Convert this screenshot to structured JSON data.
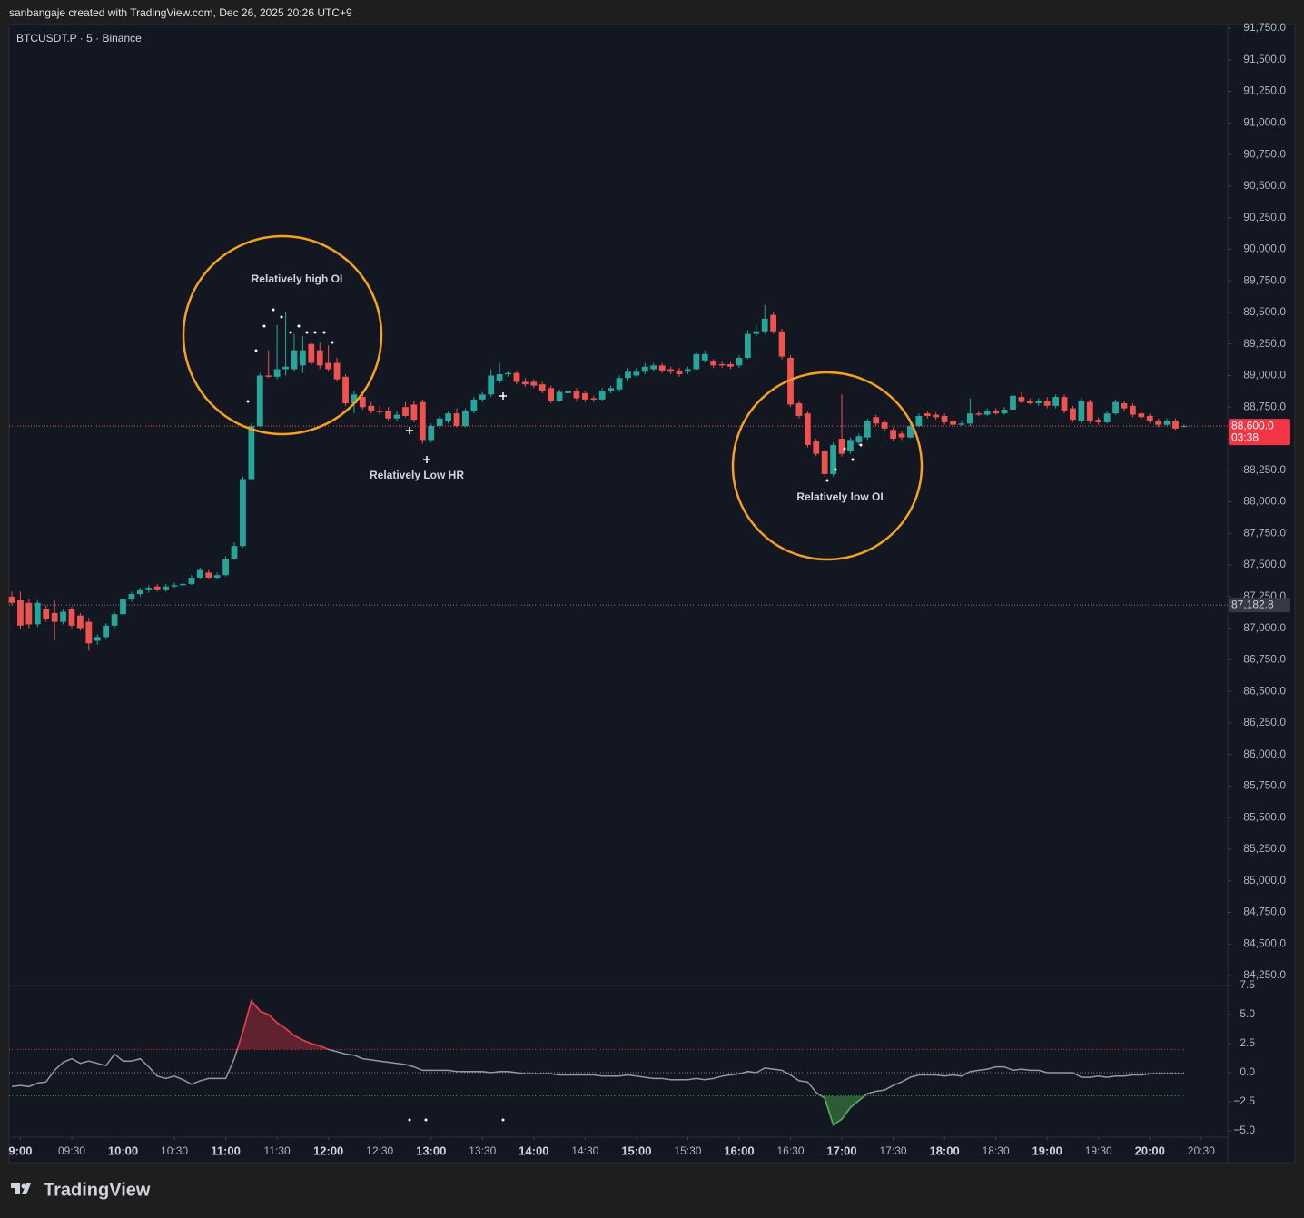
{
  "header": "sanbangaje created with TradingView.com, Dec 26, 2025 20:26 UTC+9",
  "footer": "TradingView",
  "chart_data": [
    {
      "type": "candlestick",
      "title": "BTCUSDT.P · 5 · Binance",
      "up_color": "#26a69a",
      "down_color": "#ef5350",
      "xlim": [
        -0.32,
        142.1
      ],
      "ylim": [
        84171,
        91779
      ],
      "yticks": [
        {
          "value": 84250,
          "label": "84,250.0"
        },
        {
          "value": 84500,
          "label": "84,500.0"
        },
        {
          "value": 84750,
          "label": "84,750.0"
        },
        {
          "value": 85000,
          "label": "85,000.0"
        },
        {
          "value": 85250,
          "label": "85,250.0"
        },
        {
          "value": 85500,
          "label": "85,500.0"
        },
        {
          "value": 85750,
          "label": "85,750.0"
        },
        {
          "value": 86000,
          "label": "86,000.0"
        },
        {
          "value": 86250,
          "label": "86,250.0"
        },
        {
          "value": 86500,
          "label": "86,500.0"
        },
        {
          "value": 86750,
          "label": "86,750.0"
        },
        {
          "value": 87000,
          "label": "87,000.0"
        },
        {
          "value": 87250,
          "label": "87,250.0"
        },
        {
          "value": 87500,
          "label": "87,500.0"
        },
        {
          "value": 87750,
          "label": "87,750.0"
        },
        {
          "value": 88000,
          "label": "88,000.0"
        },
        {
          "value": 88250,
          "label": "88,250.0"
        },
        {
          "value": 88500,
          "label": "88,500.0"
        },
        {
          "value": 88750,
          "label": "88,750.0"
        },
        {
          "value": 89000,
          "label": "89,000.0"
        },
        {
          "value": 89250,
          "label": "89,250.0"
        },
        {
          "value": 89500,
          "label": "89,500.0"
        },
        {
          "value": 89750,
          "label": "89,750.0"
        },
        {
          "value": 90000,
          "label": "90,000.0"
        },
        {
          "value": 90250,
          "label": "90,250.0"
        },
        {
          "value": 90500,
          "label": "90,500.0"
        },
        {
          "value": 90750,
          "label": "90,750.0"
        },
        {
          "value": 91000,
          "label": "91,000.0"
        },
        {
          "value": 91250,
          "label": "91,250.0"
        },
        {
          "value": 91500,
          "label": "91,500.0"
        },
        {
          "value": 91750,
          "label": "91,750.0"
        }
      ],
      "last_price": {
        "value": 88600,
        "label": "88,600.0"
      },
      "countdown": "03:38",
      "marked_price": {
        "value": 87182.8,
        "label": "87,182.8"
      },
      "annotations": [
        "Relatively high OI",
        "Relatively Low HR",
        "Relatively low OI"
      ],
      "candles": [
        [
          87250,
          87290,
          87180,
          87200
        ],
        [
          87220,
          87290,
          86990,
          87020
        ],
        [
          87200,
          87230,
          87000,
          87030
        ],
        [
          87030,
          87220,
          87010,
          87200
        ],
        [
          87150,
          87180,
          87050,
          87070
        ],
        [
          87120,
          87220,
          86900,
          87050
        ],
        [
          87050,
          87150,
          87030,
          87130
        ],
        [
          87150,
          87170,
          87000,
          87020
        ],
        [
          87100,
          87120,
          86980,
          87000
        ],
        [
          87050,
          87080,
          86820,
          86880
        ],
        [
          86900,
          86950,
          86870,
          86930
        ],
        [
          86930,
          87040,
          86910,
          87020
        ],
        [
          87020,
          87130,
          87000,
          87110
        ],
        [
          87110,
          87250,
          87100,
          87230
        ],
        [
          87230,
          87290,
          87210,
          87270
        ],
        [
          87270,
          87320,
          87250,
          87300
        ],
        [
          87300,
          87340,
          87280,
          87320
        ],
        [
          87330,
          87350,
          87290,
          87300
        ],
        [
          87300,
          87350,
          87290,
          87330
        ],
        [
          87330,
          87360,
          87320,
          87340
        ],
        [
          87340,
          87370,
          87320,
          87350
        ],
        [
          87350,
          87420,
          87340,
          87400
        ],
        [
          87400,
          87480,
          87390,
          87460
        ],
        [
          87440,
          87460,
          87390,
          87400
        ],
        [
          87400,
          87440,
          87390,
          87420
        ],
        [
          87420,
          87570,
          87410,
          87550
        ],
        [
          87550,
          87680,
          87540,
          87650
        ],
        [
          87650,
          88200,
          87640,
          88180
        ],
        [
          88180,
          88620,
          88170,
          88600
        ],
        [
          88600,
          89020,
          88590,
          89000
        ],
        [
          89000,
          89200,
          88980,
          88990
        ],
        [
          88990,
          89400,
          88970,
          89050
        ],
        [
          89050,
          89500,
          89000,
          89070
        ],
        [
          89050,
          89330,
          89030,
          89200
        ],
        [
          89080,
          89310,
          89020,
          89200
        ],
        [
          89250,
          89270,
          89080,
          89100
        ],
        [
          89200,
          89260,
          89050,
          89080
        ],
        [
          89100,
          89240,
          89030,
          89050
        ],
        [
          89100,
          89140,
          88950,
          88970
        ],
        [
          88990,
          89010,
          88760,
          88780
        ],
        [
          88780,
          88880,
          88700,
          88850
        ],
        [
          88830,
          88860,
          88730,
          88750
        ],
        [
          88760,
          88790,
          88700,
          88720
        ],
        [
          88720,
          88760,
          88690,
          88710
        ],
        [
          88720,
          88750,
          88640,
          88660
        ],
        [
          88660,
          88720,
          88640,
          88690
        ],
        [
          88750,
          88790,
          88670,
          88680
        ],
        [
          88770,
          88800,
          88630,
          88650
        ],
        [
          88790,
          88810,
          88460,
          88490
        ],
        [
          88490,
          88620,
          88470,
          88600
        ],
        [
          88600,
          88680,
          88580,
          88660
        ],
        [
          88640,
          88720,
          88620,
          88700
        ],
        [
          88700,
          88740,
          88590,
          88600
        ],
        [
          88600,
          88740,
          88590,
          88720
        ],
        [
          88720,
          88830,
          88700,
          88810
        ],
        [
          88810,
          88870,
          88790,
          88850
        ],
        [
          88850,
          89050,
          88830,
          89000
        ],
        [
          88960,
          89100,
          88940,
          89010
        ],
        [
          89010,
          89040,
          88990,
          89020
        ],
        [
          89020,
          89040,
          88930,
          88950
        ],
        [
          88950,
          88980,
          88910,
          88930
        ],
        [
          88950,
          88970,
          88900,
          88920
        ],
        [
          88930,
          88950,
          88860,
          88880
        ],
        [
          88900,
          88920,
          88780,
          88800
        ],
        [
          88800,
          88890,
          88790,
          88870
        ],
        [
          88860,
          88900,
          88840,
          88880
        ],
        [
          88880,
          88900,
          88800,
          88820
        ],
        [
          88860,
          88880,
          88790,
          88810
        ],
        [
          88820,
          88840,
          88790,
          88810
        ],
        [
          88810,
          88900,
          88800,
          88880
        ],
        [
          88880,
          88920,
          88860,
          88900
        ],
        [
          88890,
          89000,
          88870,
          88980
        ],
        [
          88980,
          89060,
          88960,
          89030
        ],
        [
          89000,
          89060,
          88990,
          89030
        ],
        [
          89030,
          89100,
          89010,
          89070
        ],
        [
          89050,
          89100,
          89030,
          89080
        ],
        [
          89080,
          89100,
          89020,
          89040
        ],
        [
          89050,
          89070,
          89010,
          89030
        ],
        [
          89040,
          89060,
          88990,
          89010
        ],
        [
          89030,
          89070,
          89010,
          89050
        ],
        [
          89050,
          89190,
          89040,
          89170
        ],
        [
          89120,
          89200,
          89100,
          89170
        ],
        [
          89110,
          89130,
          89060,
          89080
        ],
        [
          89090,
          89110,
          89060,
          89080
        ],
        [
          89090,
          89110,
          89050,
          89070
        ],
        [
          89080,
          89160,
          89060,
          89140
        ],
        [
          89140,
          89360,
          89130,
          89330
        ],
        [
          89330,
          89400,
          89310,
          89350
        ],
        [
          89350,
          89560,
          89330,
          89450
        ],
        [
          89480,
          89500,
          89330,
          89350
        ],
        [
          89350,
          89370,
          89130,
          89150
        ],
        [
          89140,
          89160,
          88750,
          88770
        ],
        [
          88780,
          88800,
          88660,
          88680
        ],
        [
          88700,
          88720,
          88430,
          88450
        ],
        [
          88480,
          88500,
          88360,
          88380
        ],
        [
          88400,
          88420,
          88200,
          88220
        ],
        [
          88220,
          88470,
          88200,
          88450
        ],
        [
          88500,
          88850,
          88360,
          88380
        ],
        [
          88400,
          88510,
          88380,
          88490
        ],
        [
          88470,
          88540,
          88450,
          88520
        ],
        [
          88510,
          88660,
          88490,
          88640
        ],
        [
          88670,
          88690,
          88600,
          88620
        ],
        [
          88630,
          88650,
          88560,
          88580
        ],
        [
          88570,
          88590,
          88480,
          88500
        ],
        [
          88540,
          88560,
          88490,
          88510
        ],
        [
          88510,
          88620,
          88500,
          88600
        ],
        [
          88600,
          88700,
          88590,
          88680
        ],
        [
          88700,
          88720,
          88660,
          88680
        ],
        [
          88690,
          88710,
          88650,
          88670
        ],
        [
          88680,
          88700,
          88610,
          88630
        ],
        [
          88640,
          88660,
          88600,
          88610
        ],
        [
          88610,
          88640,
          88600,
          88620
        ],
        [
          88620,
          88820,
          88600,
          88700
        ],
        [
          88700,
          88720,
          88680,
          88690
        ],
        [
          88690,
          88740,
          88680,
          88720
        ],
        [
          88720,
          88740,
          88690,
          88700
        ],
        [
          88700,
          88750,
          88690,
          88730
        ],
        [
          88730,
          88860,
          88720,
          88840
        ],
        [
          88830,
          88870,
          88780,
          88790
        ],
        [
          88800,
          88820,
          88770,
          88780
        ],
        [
          88780,
          88820,
          88760,
          88800
        ],
        [
          88800,
          88830,
          88740,
          88760
        ],
        [
          88760,
          88850,
          88740,
          88830
        ],
        [
          88830,
          88850,
          88700,
          88720
        ],
        [
          88740,
          88760,
          88630,
          88650
        ],
        [
          88640,
          88820,
          88620,
          88800
        ],
        [
          88790,
          88810,
          88620,
          88640
        ],
        [
          88650,
          88670,
          88610,
          88630
        ],
        [
          88630,
          88720,
          88620,
          88700
        ],
        [
          88700,
          88810,
          88690,
          88790
        ],
        [
          88780,
          88800,
          88720,
          88740
        ],
        [
          88760,
          88780,
          88670,
          88690
        ],
        [
          88700,
          88720,
          88650,
          88670
        ],
        [
          88680,
          88700,
          88620,
          88640
        ],
        [
          88640,
          88660,
          88590,
          88610
        ],
        [
          88610,
          88660,
          88600,
          88640
        ],
        [
          88640,
          88660,
          88570,
          88580
        ],
        [
          88600,
          88610,
          88590,
          88600
        ]
      ]
    },
    {
      "type": "line",
      "color": "#9598a1",
      "above_color": "#f23645",
      "below_color": "#4caf50",
      "levels": [
        2,
        0,
        -2
      ],
      "xlim": [
        -0.32,
        142.1
      ],
      "ylim": [
        -5.55,
        7.5
      ],
      "yticks": [
        7.5,
        {
          "value": 5,
          "label": "5.0"
        },
        2.5,
        {
          "value": 0,
          "label": "0.0"
        },
        {
          "value": -2.5,
          "label": "−2.5"
        },
        {
          "value": -5,
          "label": "−5.0"
        }
      ],
      "xticks": [
        {
          "value": 1,
          "label": "9:00"
        },
        {
          "value": 7,
          "label": "09:30"
        },
        {
          "value": 13,
          "label": "10:00"
        },
        {
          "value": 19,
          "label": "10:30"
        },
        {
          "value": 25,
          "label": "11:00"
        },
        {
          "value": 31,
          "label": "11:30"
        },
        {
          "value": 37,
          "label": "12:00"
        },
        {
          "value": 43,
          "label": "12:30"
        },
        {
          "value": 49,
          "label": "13:00"
        },
        {
          "value": 55,
          "label": "13:30"
        },
        {
          "value": 61,
          "label": "14:00"
        },
        {
          "value": 67,
          "label": "14:30"
        },
        {
          "value": 73,
          "label": "15:00"
        },
        {
          "value": 79,
          "label": "15:30"
        },
        {
          "value": 85,
          "label": "16:00"
        },
        {
          "value": 91,
          "label": "16:30"
        },
        {
          "value": 97,
          "label": "17:00"
        },
        {
          "value": 103,
          "label": "17:30"
        },
        {
          "value": 109,
          "label": "18:00"
        },
        {
          "value": 115,
          "label": "18:30"
        },
        {
          "value": 121,
          "label": "19:00"
        },
        {
          "value": 127,
          "label": "19:30"
        },
        {
          "value": 133,
          "label": "20:00"
        },
        {
          "value": 139,
          "label": "20:30"
        }
      ],
      "values": [
        -1.2,
        -1.1,
        -1.2,
        -0.9,
        -0.8,
        0.2,
        0.9,
        1.2,
        0.8,
        1.0,
        0.8,
        0.6,
        1.6,
        1.0,
        1.0,
        1.2,
        0.5,
        -0.3,
        -0.5,
        -0.3,
        -0.6,
        -1.0,
        -0.7,
        -0.5,
        -0.5,
        -0.5,
        1.2,
        3.5,
        6.2,
        5.3,
        5.0,
        4.3,
        3.8,
        3.2,
        2.8,
        2.5,
        2.3,
        2.0,
        1.8,
        1.6,
        1.5,
        1.2,
        1.1,
        1.0,
        0.9,
        0.8,
        0.7,
        0.5,
        0.2,
        0.2,
        0.2,
        0.2,
        0.1,
        0.1,
        0.1,
        0.1,
        0.0,
        0.1,
        0.1,
        0.0,
        -0.1,
        -0.1,
        -0.1,
        -0.1,
        -0.2,
        -0.2,
        -0.2,
        -0.2,
        -0.2,
        -0.3,
        -0.3,
        -0.3,
        -0.2,
        -0.3,
        -0.4,
        -0.5,
        -0.5,
        -0.6,
        -0.6,
        -0.6,
        -0.5,
        -0.6,
        -0.5,
        -0.3,
        -0.2,
        -0.1,
        0.1,
        0.0,
        0.4,
        0.3,
        0.2,
        -0.2,
        -0.7,
        -0.8,
        -1.7,
        -2.2,
        -4.5,
        -4.0,
        -3.0,
        -2.4,
        -1.8,
        -1.6,
        -1.5,
        -1.1,
        -0.8,
        -0.4,
        -0.2,
        -0.2,
        -0.2,
        -0.3,
        -0.2,
        -0.3,
        0.1,
        0.2,
        0.3,
        0.5,
        0.5,
        0.2,
        0.3,
        0.2,
        0.2,
        0.0,
        0.0,
        0.0,
        0.0,
        -0.4,
        -0.4,
        -0.3,
        -0.4,
        -0.3,
        -0.3,
        -0.2,
        -0.2,
        -0.1,
        -0.1,
        -0.1,
        -0.1,
        -0.1
      ]
    }
  ]
}
